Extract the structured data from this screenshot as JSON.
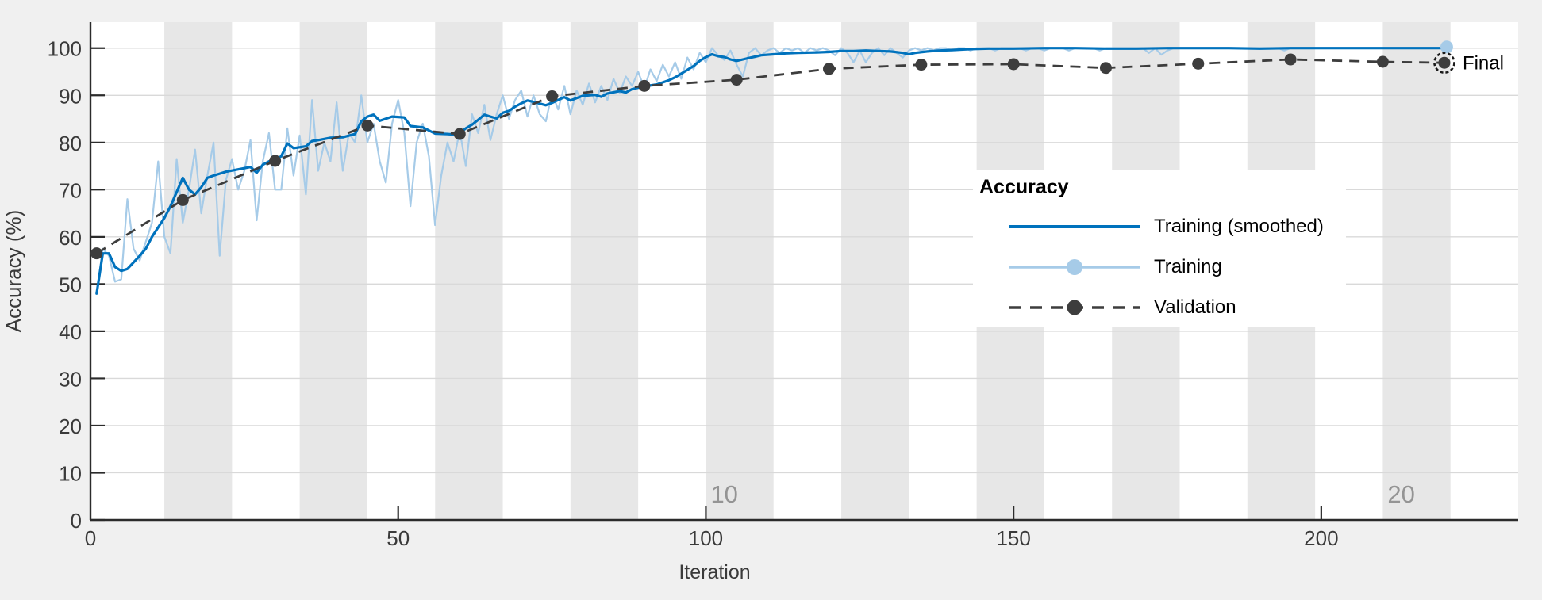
{
  "colors": {
    "figure_background": "#f0f0f0",
    "plot_background": "#ffffff",
    "epoch_band": "#e7e7e7",
    "gridline": "#d9d9d9",
    "axis": "#2b2b2b",
    "tick_label": "#3a3a3a",
    "epoch_label": "#949494",
    "training_smoothed": "#0072bd",
    "training_raw": "#a6cbe8",
    "validation": "#3d3d3d",
    "final_label": "#000000"
  },
  "labels": {
    "x_axis": "Iteration",
    "y_axis": "Accuracy (%)",
    "final_marker": "Final"
  },
  "chart_data": {
    "type": "line",
    "title": "",
    "xlabel": "Iteration",
    "ylabel": "Accuracy (%)",
    "xlim": [
      0,
      232
    ],
    "ylim": [
      0,
      105.5
    ],
    "x_ticks": [
      0,
      50,
      100,
      150,
      200
    ],
    "y_ticks": [
      0,
      10,
      20,
      30,
      40,
      50,
      60,
      70,
      80,
      90,
      100
    ],
    "grid": "horizontal",
    "epoch_shading": {
      "total_epochs": 20,
      "iterations_per_epoch": 11,
      "first_iteration": 1,
      "shaded_epochs": "even"
    },
    "epoch_labels": [
      {
        "text": "10",
        "iter": 103
      },
      {
        "text": "20",
        "iter": 213
      }
    ],
    "legend": {
      "title": "Accuracy",
      "position": "right-middle",
      "entries": [
        {
          "label": "Training (smoothed)",
          "style": "solid-line"
        },
        {
          "label": "Training",
          "style": "line-with-dot"
        },
        {
          "label": "Validation",
          "style": "dashed-line-with-dot"
        }
      ]
    },
    "series": [
      {
        "name": "Training (smoothed)",
        "style": "solid",
        "points": [
          [
            1,
            48
          ],
          [
            2,
            56.5
          ],
          [
            3,
            56.5
          ],
          [
            4,
            53.6
          ],
          [
            5,
            52.8
          ],
          [
            6,
            53.2
          ],
          [
            7,
            54.6
          ],
          [
            8,
            56
          ],
          [
            9,
            57.5
          ],
          [
            10,
            60
          ],
          [
            11,
            62
          ],
          [
            12,
            64
          ],
          [
            13,
            66.5
          ],
          [
            14,
            69.5
          ],
          [
            15,
            72.5
          ],
          [
            16,
            70
          ],
          [
            17,
            69
          ],
          [
            18,
            70.5
          ],
          [
            19,
            72.5
          ],
          [
            20,
            73
          ],
          [
            21,
            73.4
          ],
          [
            22,
            73.8
          ],
          [
            24,
            74.3
          ],
          [
            26,
            74.8
          ],
          [
            27,
            73.6
          ],
          [
            28,
            75.3
          ],
          [
            29,
            76
          ],
          [
            30,
            76.2
          ],
          [
            31,
            77.1
          ],
          [
            32,
            79.8
          ],
          [
            33,
            78.8
          ],
          [
            35,
            79.2
          ],
          [
            36,
            80.3
          ],
          [
            37,
            80.5
          ],
          [
            39,
            81
          ],
          [
            41,
            81.1
          ],
          [
            43,
            81.8
          ],
          [
            44,
            84.5
          ],
          [
            45,
            85.5
          ],
          [
            46,
            85.9
          ],
          [
            47,
            84.6
          ],
          [
            49,
            85.5
          ],
          [
            51,
            85.3
          ],
          [
            52,
            83.5
          ],
          [
            54,
            83.2
          ],
          [
            56,
            81.9
          ],
          [
            58,
            81.8
          ],
          [
            59,
            81.7
          ],
          [
            60,
            82
          ],
          [
            61,
            83
          ],
          [
            62,
            83.8
          ],
          [
            63,
            84.8
          ],
          [
            64,
            85.9
          ],
          [
            65,
            85.5
          ],
          [
            66,
            85.1
          ],
          [
            67,
            86.3
          ],
          [
            68,
            86.7
          ],
          [
            69,
            87.6
          ],
          [
            70,
            88.3
          ],
          [
            71,
            88.9
          ],
          [
            72,
            88.6
          ],
          [
            74,
            87.9
          ],
          [
            75,
            88.4
          ],
          [
            76,
            89
          ],
          [
            77,
            89.6
          ],
          [
            78,
            88.9
          ],
          [
            79,
            89.4
          ],
          [
            80,
            89.9
          ],
          [
            82,
            90.1
          ],
          [
            83,
            89.7
          ],
          [
            84,
            90.4
          ],
          [
            86,
            90.9
          ],
          [
            87,
            90.6
          ],
          [
            88,
            91.3
          ],
          [
            90,
            91.9
          ],
          [
            92,
            92.3
          ],
          [
            94,
            93.2
          ],
          [
            95,
            93.8
          ],
          [
            96,
            94.6
          ],
          [
            97,
            95.4
          ],
          [
            98,
            96.2
          ],
          [
            99,
            97.3
          ],
          [
            100,
            98.1
          ],
          [
            101,
            98.7
          ],
          [
            102,
            98.3
          ],
          [
            103,
            98.1
          ],
          [
            104,
            97.6
          ],
          [
            105,
            97.3
          ],
          [
            106,
            97.6
          ],
          [
            107,
            97.9
          ],
          [
            108,
            98.2
          ],
          [
            109,
            98.5
          ],
          [
            111,
            98.7
          ],
          [
            113,
            98.9
          ],
          [
            115,
            99
          ],
          [
            118,
            99.1
          ],
          [
            120,
            99.2
          ],
          [
            122,
            99.4
          ],
          [
            124,
            99.4
          ],
          [
            126,
            99.5
          ],
          [
            128,
            99.4
          ],
          [
            130,
            99.3
          ],
          [
            132,
            99
          ],
          [
            133,
            98.7
          ],
          [
            134,
            99
          ],
          [
            136,
            99.3
          ],
          [
            138,
            99.5
          ],
          [
            140,
            99.6
          ],
          [
            143,
            99.8
          ],
          [
            146,
            99.9
          ],
          [
            150,
            99.9
          ],
          [
            155,
            100
          ],
          [
            160,
            100
          ],
          [
            165,
            99.9
          ],
          [
            170,
            99.9
          ],
          [
            175,
            100
          ],
          [
            180,
            100
          ],
          [
            185,
            100
          ],
          [
            190,
            99.9
          ],
          [
            195,
            100
          ],
          [
            200,
            100
          ],
          [
            205,
            100
          ],
          [
            210,
            100
          ],
          [
            215,
            100
          ],
          [
            220,
            100
          ]
        ]
      },
      {
        "name": "Training",
        "style": "solid-light",
        "x_start": 1,
        "x_step": 1,
        "end_marker": true,
        "values": [
          48,
          57.5,
          56,
          50.5,
          51,
          68,
          57.5,
          55,
          59,
          63,
          76,
          60,
          56.5,
          76.5,
          63,
          70,
          78.5,
          65,
          73,
          80,
          56,
          72,
          76.5,
          70,
          74,
          80.5,
          63.5,
          76,
          82,
          70,
          70,
          83,
          73,
          81.5,
          69,
          89,
          74,
          80,
          76,
          88.5,
          74,
          82,
          80,
          90,
          80,
          84,
          76,
          71.5,
          84,
          89,
          82,
          66.5,
          80,
          84,
          77,
          62.5,
          73,
          80,
          76,
          82.5,
          75,
          86,
          82,
          88,
          80.5,
          86,
          90,
          85,
          89,
          91,
          85.5,
          90,
          86,
          84.5,
          90.5,
          87,
          92,
          86,
          91,
          88,
          92.5,
          88.5,
          92,
          89,
          93.5,
          90.5,
          94,
          92,
          95,
          91.5,
          95.5,
          93,
          96.5,
          94,
          97,
          93.5,
          98,
          95.5,
          99,
          97,
          100,
          98.5,
          97.5,
          99.5,
          96.5,
          94,
          99,
          100,
          98.5,
          99.5,
          100,
          99,
          100,
          99.5,
          100,
          99,
          100,
          99.5,
          100,
          99.5,
          98.5,
          100,
          99,
          97,
          99.5,
          97,
          99,
          100,
          98.5,
          100,
          99,
          98,
          99.5,
          100,
          99.5,
          100,
          99.5,
          100,
          100,
          99.5,
          100,
          100,
          99.5,
          100,
          100,
          100,
          99.5,
          100,
          100,
          100,
          100,
          99.5,
          100,
          100,
          99.5,
          100,
          100,
          100,
          99.5,
          100,
          100,
          100,
          100,
          99.5,
          100,
          100,
          100,
          100,
          100,
          100,
          100,
          99,
          100,
          98.6,
          99.5,
          100,
          100,
          100,
          100,
          100,
          100,
          100,
          100,
          100,
          100,
          100,
          100,
          100,
          100,
          100,
          100,
          100,
          100,
          99.5,
          100,
          100,
          100,
          100,
          100,
          100,
          100,
          100,
          100,
          100,
          100,
          100,
          100,
          100,
          100,
          100,
          100,
          100,
          100,
          100,
          100,
          100,
          100,
          100,
          100,
          100
        ]
      },
      {
        "name": "Validation",
        "style": "dashed",
        "marker": "dot",
        "points": [
          [
            1,
            56.5
          ],
          [
            15,
            67.8
          ],
          [
            30,
            76.1
          ],
          [
            45,
            83.6
          ],
          [
            60,
            81.8
          ],
          [
            75,
            89.8
          ],
          [
            90,
            92
          ],
          [
            105,
            93.3
          ],
          [
            120,
            95.6
          ],
          [
            135,
            96.5
          ],
          [
            150,
            96.6
          ],
          [
            165,
            95.8
          ],
          [
            180,
            96.7
          ],
          [
            195,
            97.6
          ],
          [
            210,
            97.1
          ],
          [
            220,
            96.9
          ]
        ],
        "final_point": {
          "iter": 220,
          "value": 96.9,
          "label": "Final"
        }
      }
    ]
  }
}
